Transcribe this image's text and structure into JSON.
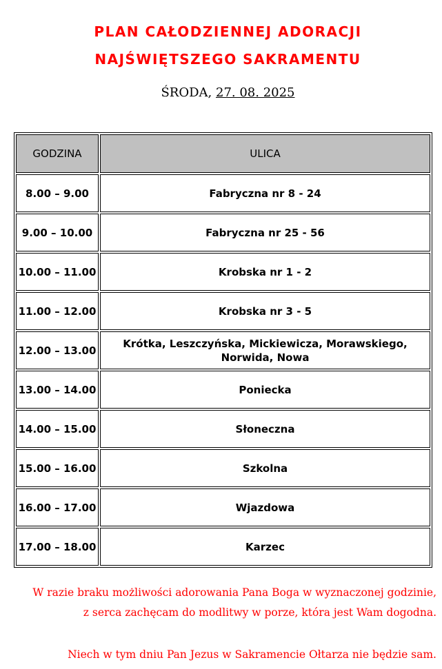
{
  "title_line1": "PLAN CAŁODZIENNEJ ADORACJI",
  "title_line2": "NAJŚWIĘTSZEGO SAKRAMENTU",
  "day": "ŚRODA,",
  "date": "27. 08. 2025",
  "table": {
    "headers": [
      "GODZINA",
      "ULICA"
    ],
    "rows": [
      {
        "time": "8.00 – 9.00",
        "street": "Fabryczna nr 8 - 24"
      },
      {
        "time": "9.00 – 10.00",
        "street": "Fabryczna nr 25 - 56"
      },
      {
        "time": "10.00 – 11.00",
        "street": "Krobska nr 1 - 2"
      },
      {
        "time": "11.00 – 12.00",
        "street": "Krobska nr 3 - 5"
      },
      {
        "time": "12.00 – 13.00",
        "street": "Krótka, Leszczyńska, Mickiewicza, Morawskiego, Norwida, Nowa"
      },
      {
        "time": "13.00 – 14.00",
        "street": "Poniecka"
      },
      {
        "time": "14.00 – 15.00",
        "street": "Słoneczna"
      },
      {
        "time": "15.00 – 16.00",
        "street": "Szkolna"
      },
      {
        "time": "16.00 – 17.00",
        "street": "Wjazdowa"
      },
      {
        "time": "17.00 – 18.00",
        "street": "Karzec"
      }
    ]
  },
  "note_line1": "W razie braku możliwości adorowania Pana Boga w wyznaczonej godzinie,",
  "note_line2": "z serca zachęcam do modlitwy w porze, która jest Wam dogodna.",
  "closing": "Niech w tym dniu Pan Jezus w Sakramencie Ołtarza nie będzie sam.",
  "colors": {
    "accent": "#ff0000",
    "header_bg": "#c0c0c0"
  }
}
